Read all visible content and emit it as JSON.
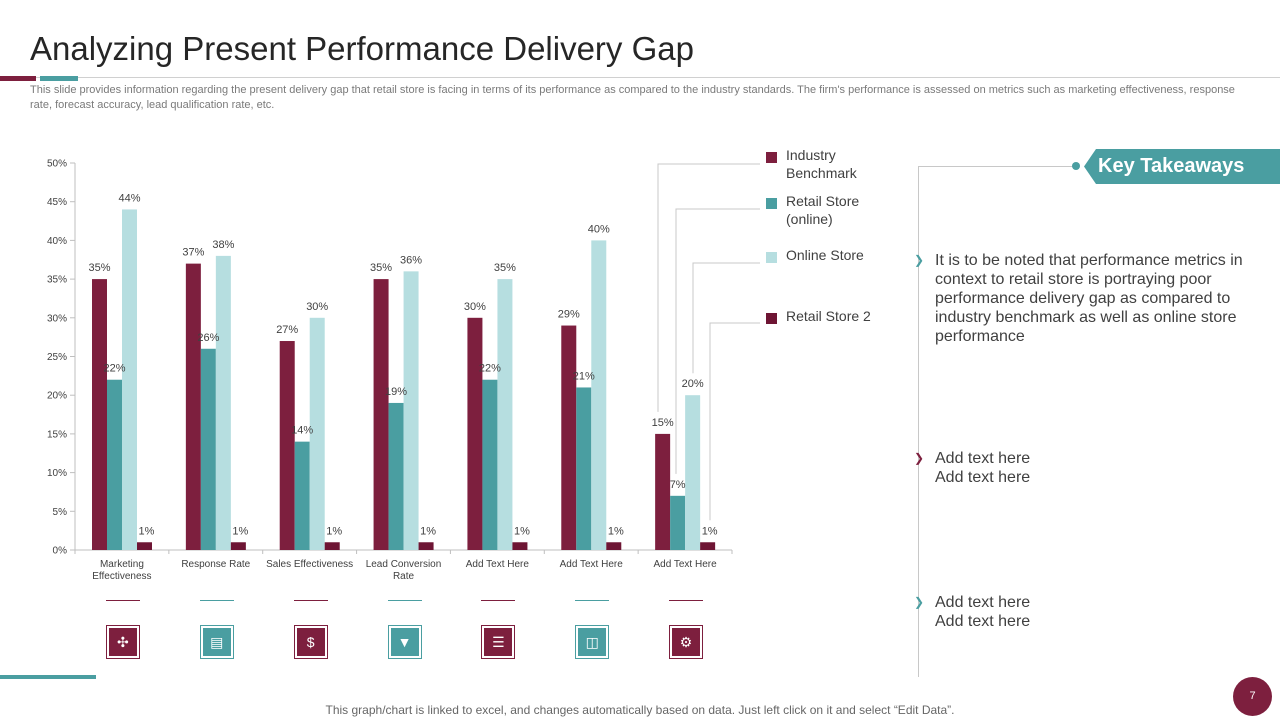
{
  "title": "Analyzing Present Performance Delivery Gap",
  "subtitle": "This slide provides information regarding the present delivery gap that retail store is facing in terms of its performance as compared to the industry standards. The firm's performance is assessed on metrics such as marketing effectiveness, response rate, forecast accuracy, lead qualification rate, etc.",
  "colors": {
    "maroon": "#7d1f3e",
    "teal": "#4a9ea1",
    "light_teal": "#b6dee0",
    "dark_maroon": "#6e1534"
  },
  "chart_data": {
    "type": "bar",
    "title": "",
    "xlabel": "",
    "ylabel": "",
    "ylim": [
      0,
      50
    ],
    "yticks": [
      "0%",
      "5%",
      "10%",
      "15%",
      "20%",
      "25%",
      "30%",
      "35%",
      "40%",
      "45%",
      "50%"
    ],
    "categories": [
      [
        "Marketing",
        "Effectiveness"
      ],
      [
        "Response  Rate"
      ],
      [
        "Sales Effectiveness"
      ],
      [
        "Lead Conversion",
        "Rate"
      ],
      [
        "Add Text Here"
      ],
      [
        "Add Text Here"
      ],
      [
        "Add Text Here"
      ]
    ],
    "series": [
      {
        "name": "Industry Benchmark",
        "color": "#7d1f3e",
        "values": [
          35,
          37,
          27,
          35,
          30,
          29,
          15
        ]
      },
      {
        "name": "Retail Store (online)",
        "color": "#4a9ea1",
        "values": [
          22,
          26,
          14,
          19,
          22,
          21,
          7
        ]
      },
      {
        "name": "Online Store",
        "color": "#b6dee0",
        "values": [
          44,
          38,
          30,
          36,
          35,
          40,
          20
        ]
      },
      {
        "name": "Retail Store 2",
        "color": "#6e1534",
        "values": [
          1,
          1,
          1,
          1,
          1,
          1,
          1
        ]
      }
    ],
    "legend_position": "right"
  },
  "legend": {
    "items": [
      {
        "label": "Industry Benchmark",
        "color": "#7d1f3e"
      },
      {
        "label": "Retail Store (online)",
        "color": "#4a9ea1"
      },
      {
        "label": "Online Store",
        "color": "#b6dee0"
      },
      {
        "label": "Retail Store 2",
        "color": "#6e1534"
      }
    ]
  },
  "category_icons": [
    {
      "icon": "megaphone-network-icon",
      "glyph": "✣",
      "color": "#7d1f3e"
    },
    {
      "icon": "clipboard-chart-icon",
      "glyph": "▤",
      "color": "#4a9ea1"
    },
    {
      "icon": "hand-money-icon",
      "glyph": "$",
      "color": "#7d1f3e"
    },
    {
      "icon": "funnel-icon",
      "glyph": "▼",
      "color": "#4a9ea1"
    },
    {
      "icon": "checklist-icon",
      "glyph": "☰",
      "color": "#7d1f3e"
    },
    {
      "icon": "presentation-icon",
      "glyph": "◫",
      "color": "#4a9ea1"
    },
    {
      "icon": "head-gear-icon",
      "glyph": "⚙",
      "color": "#7d1f3e"
    }
  ],
  "key_takeaways": {
    "heading": "Key Takeaways",
    "points": [
      {
        "text": "It is to be noted that performance metrics in context to retail store is portraying poor performance delivery gap as compared to industry benchmark  as well as online store performance",
        "color": "#4a9ea1"
      },
      {
        "text": "Add text here\nAdd text here",
        "color": "#7d1f3e"
      },
      {
        "text": "Add text here\nAdd text here",
        "color": "#4a9ea1"
      }
    ]
  },
  "footer": "This graph/chart is linked to excel,  and changes automatically based on data. Just left click on it and select “Edit Data”.",
  "page_number": "7"
}
